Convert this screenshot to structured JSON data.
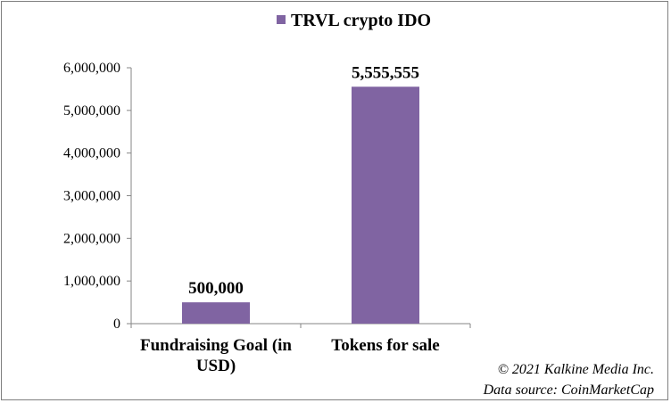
{
  "chart_data": {
    "type": "bar",
    "title": "",
    "legend": {
      "position": "top",
      "entries": [
        "TRVL crypto IDO"
      ]
    },
    "series": [
      {
        "name": "TRVL crypto IDO",
        "color": "#8064a2",
        "values": [
          500000,
          5555555
        ]
      }
    ],
    "categories": [
      [
        "Fundraising Goal (in",
        "USD)"
      ],
      [
        "Tokens for sale"
      ]
    ],
    "data_labels": [
      "500,000",
      "5,555,555"
    ],
    "yaxis": {
      "ylim": [
        0,
        6000000
      ],
      "ticks": [
        0,
        1000000,
        2000000,
        3000000,
        4000000,
        5000000,
        6000000
      ],
      "tick_labels": [
        "0",
        "1,000,000",
        "2,000,000",
        "3,000,000",
        "4,000,000",
        "5,000,000",
        "6,000,000"
      ]
    },
    "grid": false,
    "xlabel": "",
    "ylabel": ""
  },
  "footer": {
    "copyright": "© 2021 Kalkine Media Inc.",
    "source": "Data source:  CoinMarketCap"
  }
}
